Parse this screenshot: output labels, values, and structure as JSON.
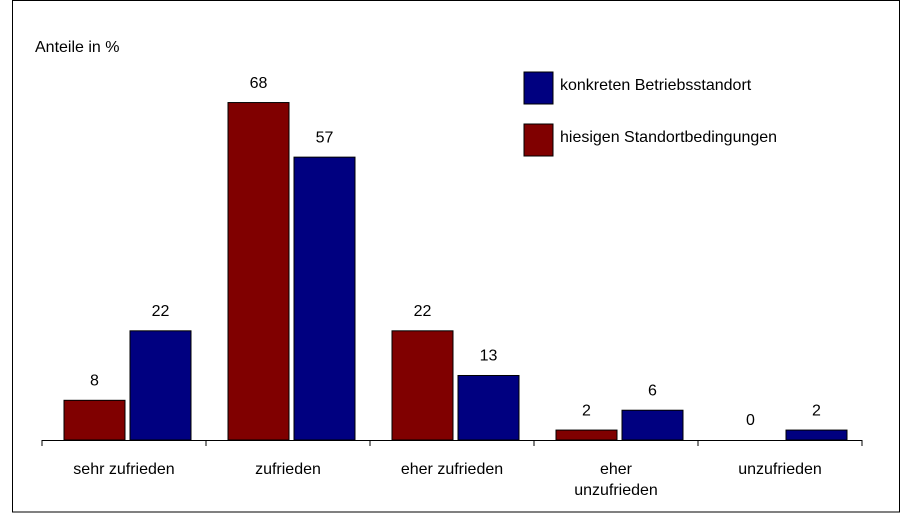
{
  "chart_data": {
    "type": "bar",
    "title": "Anteile in %",
    "categories": [
      "sehr zufrieden",
      "zufrieden",
      "eher zufrieden",
      "eher unzufrieden",
      "unzufrieden"
    ],
    "series": [
      {
        "name": "konkreten Betriebsstandort",
        "color": "#000080",
        "values": [
          22,
          57,
          13,
          6,
          2
        ]
      },
      {
        "name": "hiesigen Standortbedingungen",
        "color": "#800000",
        "values": [
          8,
          68,
          22,
          2,
          0
        ]
      }
    ],
    "ylim": [
      0,
      80
    ],
    "grid": false,
    "legend": "top-right"
  }
}
